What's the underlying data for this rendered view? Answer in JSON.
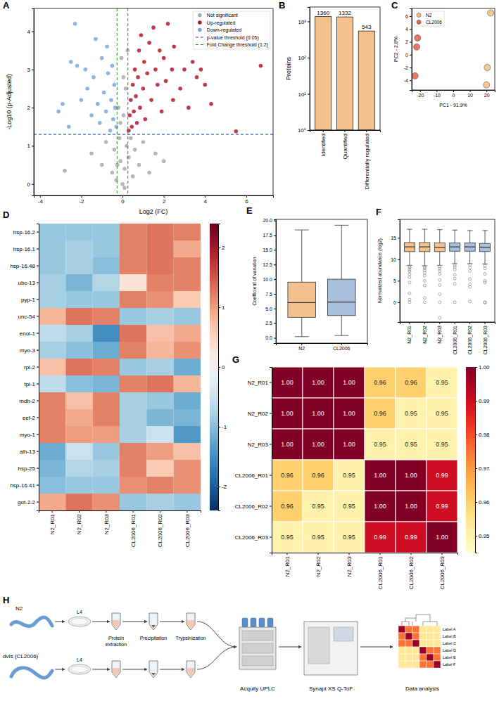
{
  "chart_data": [
    {
      "panel": "A",
      "type": "scatter",
      "x_label": "Log2 (FC)",
      "y_label": "-Log10 (p-Adjusted)",
      "xlim": [
        -4.3,
        7.3
      ],
      "ylim": [
        -0.3,
        4.6
      ],
      "xticks": [
        -4,
        -2,
        0,
        2,
        4,
        6
      ],
      "yticks": [
        0,
        1,
        2,
        3,
        4
      ],
      "legend": "top-right",
      "series": [
        {
          "name": "Not significant",
          "color": "#a9a9a9",
          "marker": "circle",
          "x": [
            -2.8,
            -1.5,
            -1.0,
            -0.8,
            -0.5,
            -0.4,
            -0.3,
            -0.2,
            -0.15,
            -0.1,
            -0.05,
            0.0,
            0.05,
            0.1,
            0.15,
            0.2,
            0.25,
            0.3,
            0.4,
            0.5,
            0.6,
            0.8,
            1.0,
            1.3,
            1.6,
            2.0,
            0.1,
            -0.1,
            0.05,
            -0.25
          ],
          "values": [
            0.35,
            0.8,
            0.5,
            1.1,
            0.3,
            0.9,
            0.1,
            2.0,
            1.2,
            0.6,
            3.3,
            0.0,
            1.8,
            0.4,
            2.5,
            1.0,
            3.5,
            0.7,
            1.2,
            0.2,
            0.9,
            0.5,
            1.1,
            0.3,
            0.8,
            0.6,
            -0.1,
            1.6,
            2.8,
            0.5
          ]
        },
        {
          "name": "Up-regulated",
          "color": "#b5172e",
          "marker": "circle",
          "x": [
            0.3,
            0.35,
            0.4,
            0.45,
            0.5,
            0.55,
            0.6,
            0.65,
            0.7,
            0.75,
            0.8,
            0.85,
            0.9,
            1.0,
            1.05,
            1.1,
            1.2,
            1.3,
            1.4,
            1.5,
            1.6,
            1.7,
            1.8,
            1.9,
            2.0,
            2.1,
            2.2,
            2.4,
            2.45,
            2.5,
            2.8,
            3.0,
            3.2,
            3.4,
            3.6,
            3.8,
            4.0,
            4.3,
            5.5,
            6.7
          ],
          "values": [
            1.4,
            1.8,
            2.2,
            1.5,
            2.6,
            1.9,
            3.0,
            2.3,
            1.6,
            2.8,
            3.5,
            2.0,
            3.9,
            2.5,
            3.2,
            1.7,
            2.9,
            3.7,
            2.2,
            4.1,
            3.0,
            2.6,
            3.5,
            1.9,
            3.3,
            2.7,
            4.2,
            3.0,
            2.2,
            3.6,
            2.5,
            3.0,
            2.0,
            3.2,
            2.8,
            3.0,
            2.6,
            2.1,
            1.38,
            3.1
          ]
        },
        {
          "name": "Down-regulated",
          "color": "#7aa5dd",
          "marker": "circle",
          "x": [
            -0.3,
            -0.35,
            -0.4,
            -0.45,
            -0.5,
            -0.55,
            -0.6,
            -0.7,
            -0.75,
            -0.8,
            -0.9,
            -1.0,
            -1.1,
            -1.2,
            -1.3,
            -1.4,
            -1.5,
            -1.7,
            -1.8,
            -2.0,
            -2.2,
            -2.3,
            -2.5,
            -2.6,
            -2.9,
            -3.1
          ],
          "values": [
            1.5,
            2.0,
            2.6,
            1.7,
            3.1,
            2.2,
            1.4,
            2.9,
            3.6,
            1.9,
            2.4,
            3.3,
            1.6,
            2.1,
            3.8,
            2.8,
            1.8,
            2.5,
            3.0,
            2.2,
            3.1,
            4.2,
            3.2,
            1.5,
            2.1,
            1.9
          ]
        }
      ],
      "thresholds": [
        {
          "name": "p-value threshold (0.05)",
          "color": "#1f3e9e",
          "line_style": "dashed",
          "y": [
            1.301
          ]
        },
        {
          "name": "Fold Change threshold (1.2)",
          "color": "#228b22",
          "line_style": "dashed",
          "x": [
            -0.263,
            0.263
          ]
        }
      ]
    },
    {
      "panel": "B",
      "type": "bar",
      "y_label": "Proteins",
      "categories": [
        "Identified",
        "Quantified",
        "Differentially regulated"
      ],
      "values": [
        1360,
        1332,
        543
      ],
      "color": "#f5c28e",
      "log": "y",
      "ylim": [
        1,
        2500
      ],
      "yticks": [
        {
          "value": 1,
          "label": "10⁰"
        },
        {
          "value": 10,
          "label": "10¹"
        },
        {
          "value": 100,
          "label": "10²"
        },
        {
          "value": 1000,
          "label": "10³"
        }
      ],
      "data_labels": true
    },
    {
      "panel": "C",
      "type": "scatter",
      "x_label": "PC1 - 91.9%",
      "y_label": "PC2 - 2.8%",
      "xlim": [
        -25,
        25
      ],
      "ylim": [
        -5.5,
        7.2
      ],
      "xticks": [
        -20,
        -10,
        0,
        10,
        20
      ],
      "yticks": [
        -4,
        -2,
        0,
        2,
        4,
        6
      ],
      "legend": "top-left",
      "series": [
        {
          "name": "N2",
          "color": "#f6c07f",
          "marker": "circle",
          "x": [
            22.5,
            20.5,
            20.0
          ],
          "values": [
            6.5,
            -2.0,
            -4.7
          ]
        },
        {
          "name": "CL2006",
          "color": "#e4604e",
          "marker": "circle",
          "x": [
            -21.5,
            -22.0,
            -23.0
          ],
          "values": [
            2.6,
            1.2,
            -3.3
          ]
        }
      ]
    },
    {
      "panel": "D",
      "type": "heatmap",
      "categories": [
        "N2_R01",
        "N2_R02",
        "N2_R03",
        "CL2006_R01",
        "CL2006_R02",
        "CL2006_R03"
      ],
      "rows": [
        "hsp-16.2",
        "hsp-16.1",
        "hsp-16.48",
        "ubc-13",
        "pyp-1",
        "unc-54",
        "enol-1",
        "myo-3",
        "rpl-2",
        "tpi-1",
        "mdh-2",
        "eef-2",
        "myo-1",
        "alh-13",
        "hsp-25",
        "hsp-16.41",
        "got-2.2"
      ],
      "values": [
        [
          -0.9,
          -0.9,
          -0.9,
          1.2,
          1.3,
          1.2
        ],
        [
          -0.9,
          -0.8,
          -0.9,
          1.2,
          1.3,
          0.9
        ],
        [
          -0.9,
          -0.8,
          -1.0,
          1.2,
          1.3,
          1.2
        ],
        [
          -0.8,
          -1.1,
          -0.7,
          0.3,
          1.2,
          1.2
        ],
        [
          -0.8,
          -0.9,
          -0.9,
          1.2,
          1.1,
          0.6
        ],
        [
          0.8,
          1.3,
          1.2,
          -0.9,
          -0.8,
          -0.9
        ],
        [
          -0.6,
          -0.8,
          -1.5,
          1.3,
          0.7,
          0.9
        ],
        [
          -0.8,
          -1.0,
          -1.2,
          1.2,
          0.8,
          1.1
        ],
        [
          0.7,
          1.3,
          1.2,
          -0.9,
          -0.8,
          -1.2
        ],
        [
          -0.6,
          -1.0,
          -1.1,
          1.2,
          1.3,
          0.8
        ],
        [
          1.2,
          0.7,
          1.2,
          -0.8,
          -0.9,
          -1.2
        ],
        [
          1.2,
          0.9,
          1.2,
          -0.8,
          -1.1,
          -1.1
        ],
        [
          1.2,
          1.0,
          1.0,
          -0.8,
          -0.5,
          -1.4
        ],
        [
          -1.2,
          -0.5,
          -0.9,
          1.2,
          1.0,
          0.7
        ],
        [
          -1.1,
          -0.7,
          -0.8,
          1.2,
          0.6,
          1.1
        ],
        [
          -1.0,
          -0.9,
          -0.9,
          1.1,
          1.2,
          1.1
        ],
        [
          0.9,
          1.3,
          1.1,
          -0.9,
          -0.8,
          -0.9
        ]
      ],
      "colorbar": {
        "range": [
          -2.4,
          2.4
        ],
        "ticks": [
          -2,
          -1,
          0,
          1,
          2
        ]
      }
    },
    {
      "panel": "E",
      "type": "box",
      "y_label": "Coefficient of variation",
      "categories": [
        "N2",
        "CL2006"
      ],
      "colors": [
        "#f5c28e",
        "#a8bfde"
      ],
      "ylim": [
        -0.9,
        20.2
      ],
      "yticks": [
        {
          "value": 0,
          "label": "0.0"
        },
        2.5,
        {
          "value": 5,
          "label": "5.0"
        },
        7.5,
        {
          "value": 10,
          "label": "10.0"
        },
        12.5,
        {
          "value": 15,
          "label": "15.0"
        },
        17.5,
        {
          "value": 20,
          "label": "20.0"
        }
      ],
      "boxes": [
        {
          "min": 0.2,
          "q1": 3.5,
          "median": 6.0,
          "q3": 9.5,
          "max": 18.4
        },
        {
          "min": 0.4,
          "q1": 3.8,
          "median": 6.1,
          "q3": 10.0,
          "max": 19.2
        }
      ]
    },
    {
      "panel": "F",
      "type": "box",
      "y_label": "Normalized abundance (log2)",
      "categories": [
        "N2_R01",
        "N2_R02",
        "N2_R03",
        "CL2006_R01",
        "CL2006_R02",
        "CL2006_R03"
      ],
      "colors": [
        "#f5c28e",
        "#f5c28e",
        "#f5c28e",
        "#a8bfde",
        "#a8bfde",
        "#a8bfde"
      ],
      "ylim": [
        -4.6,
        19.3
      ],
      "yticks": [
        0,
        5,
        10,
        15
      ],
      "boxes": [
        {
          "min": 8.6,
          "q1": 11.8,
          "median": 12.9,
          "q3": 13.9,
          "max": 17.0,
          "outliers": [
            8.3,
            8.0,
            7.6,
            7.2,
            6.5,
            5.8,
            4.6,
            2.1,
            0.6,
            0.0
          ]
        },
        {
          "min": 8.5,
          "q1": 11.8,
          "median": 12.9,
          "q3": 13.9,
          "max": 17.0,
          "outliers": [
            8.2,
            7.9,
            7.4,
            6.9,
            6.2,
            5.0,
            3.9,
            1.0,
            0.0
          ]
        },
        {
          "min": 8.6,
          "q1": 11.8,
          "median": 12.8,
          "q3": 13.8,
          "max": 16.9,
          "outliers": [
            8.3,
            7.8,
            7.3,
            6.6,
            5.2,
            4.0,
            1.9,
            0.0,
            -3.6
          ]
        },
        {
          "min": 9.0,
          "q1": 11.9,
          "median": 12.9,
          "q3": 13.8,
          "max": 16.8,
          "outliers": [
            8.6,
            8.2,
            7.6,
            6.4,
            5.5,
            4.3,
            0.0
          ]
        },
        {
          "min": 9.0,
          "q1": 11.9,
          "median": 12.9,
          "q3": 13.8,
          "max": 16.7,
          "outliers": [
            8.7,
            8.1,
            7.3,
            5.4,
            4.2,
            3.6,
            0.2
          ]
        },
        {
          "min": 8.9,
          "q1": 11.8,
          "median": 12.8,
          "q3": 13.7,
          "max": 16.7,
          "outliers": [
            8.5,
            7.9,
            6.6,
            5.0,
            4.6,
            0.0,
            -0.1
          ]
        }
      ]
    },
    {
      "panel": "G",
      "type": "heatmap",
      "categories": [
        "N2_R01",
        "N2_R02",
        "N2_R03",
        "CL2006_R01",
        "CL2006_R02",
        "CL2006_R03"
      ],
      "rows": [
        "N2_R01",
        "N2_R02",
        "N2_R03",
        "CL2006_R01",
        "CL2006_R02",
        "CL2006_R03"
      ],
      "values": [
        [
          1,
          1,
          1,
          0.96,
          0.96,
          0.95
        ],
        [
          1,
          1,
          1,
          0.96,
          0.95,
          0.95
        ],
        [
          1,
          1,
          1,
          0.95,
          0.95,
          0.95
        ],
        [
          0.96,
          0.96,
          0.95,
          1,
          1,
          0.99
        ],
        [
          0.96,
          0.95,
          0.95,
          1,
          1,
          0.99
        ],
        [
          0.95,
          0.95,
          0.95,
          0.99,
          0.99,
          1
        ]
      ],
      "value_labels": [
        [
          "1.00",
          "1.00",
          "1.00",
          "0.96",
          "0.96",
          "0.95"
        ],
        [
          "1.00",
          "1.00",
          "1.00",
          "0.96",
          "0.95",
          "0.95"
        ],
        [
          "1.00",
          "1.00",
          "1.00",
          "0.95",
          "0.95",
          "0.95"
        ],
        [
          "0.96",
          "0.96",
          "0.95",
          "1.00",
          "1.00",
          "0.99"
        ],
        [
          "0.96",
          "0.95",
          "0.95",
          "1.00",
          "1.00",
          "0.99"
        ],
        [
          "0.95",
          "0.95",
          "0.95",
          "0.99",
          "0.99",
          "1.00"
        ]
      ],
      "data_labels": true,
      "colorbar": {
        "range": [
          0.945,
          1.0
        ],
        "ticks": [
          0.95,
          0.96,
          0.97,
          0.98,
          0.99,
          {
            "value": 1,
            "label": "1.00"
          }
        ]
      }
    }
  ],
  "workflow": {
    "panel": "H",
    "strains": [
      "N2",
      "dvIs (CL2006)"
    ],
    "stage": "L4",
    "steps": [
      "Protein extraction",
      "Precipitation",
      "Trypsinization"
    ],
    "instruments": [
      "Acquity UPLC",
      "Synapt XS Q-ToF"
    ],
    "output": "Data analysis",
    "thumbnail_labels": [
      "Label A",
      "Label B",
      "Label C",
      "Label D",
      "Label E",
      "Label F"
    ]
  }
}
